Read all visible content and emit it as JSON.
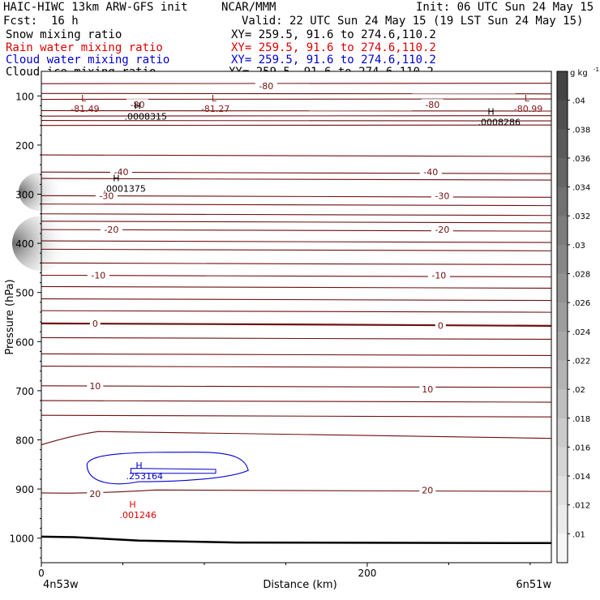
{
  "header": {
    "model": "HAIC-HIWC 13km ARW-GFS init",
    "org": "NCAR/MMM",
    "init": "Init: 06 UTC Sun 24 May 15",
    "fcst_label": "Fcst:",
    "fcst_value": "16 h",
    "valid": "Valid: 22 UTC Sun 24 May 15 (19 LST Sun 24 May 15)"
  },
  "fields": [
    {
      "name": "Snow mixing ratio",
      "xy": "XY= 259.5, 91.6 to 274.6,110.2",
      "color": "#000000"
    },
    {
      "name": "Rain water mixing ratio",
      "xy": "XY= 259.5, 91.6 to 274.6,110.2",
      "color": "#e00000"
    },
    {
      "name": "Cloud water mixing ratio",
      "xy": "XY= 259.5, 91.6 to 274.6,110.2",
      "color": "#0000d0"
    },
    {
      "name": "Cloud ice mixing ratio",
      "xy": "XY= 259.5, 91.6 to 274.6,110.2",
      "color": "#000000"
    }
  ],
  "chart_data": {
    "type": "contour",
    "xlabel": "Distance (km)",
    "ylabel": "Pressure (hPa)",
    "xlim": [
      0,
      313
    ],
    "ylim_hpa": [
      50,
      1050
    ],
    "x_ticks": [
      0,
      200
    ],
    "y_ticks": [
      100,
      200,
      300,
      400,
      500,
      600,
      700,
      800,
      900,
      1000
    ],
    "endpoints": {
      "left": "4n53w",
      "right": "6n51w"
    },
    "temperature_contours_c": [
      -80,
      -40,
      -30,
      -20,
      -10,
      0,
      10,
      20
    ],
    "temperature_contour_labels": [
      {
        "text": "-80",
        "x": 138,
        "p": 80
      },
      {
        "text": "-80",
        "x": 240,
        "p": 118
      },
      {
        "text": "-80",
        "x": 59,
        "p": 118
      },
      {
        "text": "-40",
        "x": 49,
        "p": 255
      },
      {
        "text": "-40",
        "x": 239,
        "p": 255
      },
      {
        "text": "-30",
        "x": 40,
        "p": 303
      },
      {
        "text": "-30",
        "x": 246,
        "p": 303
      },
      {
        "text": "-20",
        "x": 43,
        "p": 372
      },
      {
        "text": "-20",
        "x": 246,
        "p": 372
      },
      {
        "text": "-10",
        "x": 35,
        "p": 465
      },
      {
        "text": "-10",
        "x": 244,
        "p": 465
      },
      {
        "text": "0",
        "x": 33,
        "p": 563
      },
      {
        "text": "0",
        "x": 245,
        "p": 567
      },
      {
        "text": "10",
        "x": 33,
        "p": 690
      },
      {
        "text": "10",
        "x": 237,
        "p": 697
      },
      {
        "text": "20",
        "x": 33,
        "p": 910
      },
      {
        "text": "20",
        "x": 237,
        "p": 902
      }
    ],
    "extrema": [
      {
        "type": "L",
        "label": "-81.49",
        "x": 18,
        "p": 118,
        "color": "#8b1a1a"
      },
      {
        "type": "L",
        "label": "-81.27",
        "x": 98,
        "p": 118,
        "color": "#8b1a1a"
      },
      {
        "type": "L",
        "label": "-80.99",
        "x": 290,
        "p": 118,
        "color": "#8b1a1a"
      },
      {
        "type": "H",
        "label": ".0008315",
        "x": 51,
        "p": 133,
        "color": "#000000"
      },
      {
        "type": "H",
        "label": ".0008286",
        "x": 268,
        "p": 145,
        "color": "#000000"
      },
      {
        "type": "H",
        "label": ".0001375",
        "x": 38,
        "p": 280,
        "color": "#000000"
      },
      {
        "type": "H",
        "label": ".253164",
        "x": 52,
        "p": 865,
        "color": "#0000d0"
      },
      {
        "type": "H",
        "label": ".001246",
        "x": 48,
        "p": 944,
        "color": "#e00000"
      }
    ],
    "colorbar": {
      "unit": "g kg",
      "unit_exponent": "-1",
      "ticks": [
        ".04",
        ".038",
        ".036",
        ".034",
        ".032",
        ".03",
        ".028",
        ".026",
        ".024",
        ".022",
        ".02",
        ".018",
        ".016",
        ".014",
        ".012",
        ".01"
      ],
      "color_top": "#444444",
      "color_bottom": "#f6f6f6"
    },
    "colors": {
      "temperature": "#6e0f0f",
      "cloud_water": "#0000d0",
      "rain": "#e00000",
      "terrain": "#000000"
    }
  }
}
